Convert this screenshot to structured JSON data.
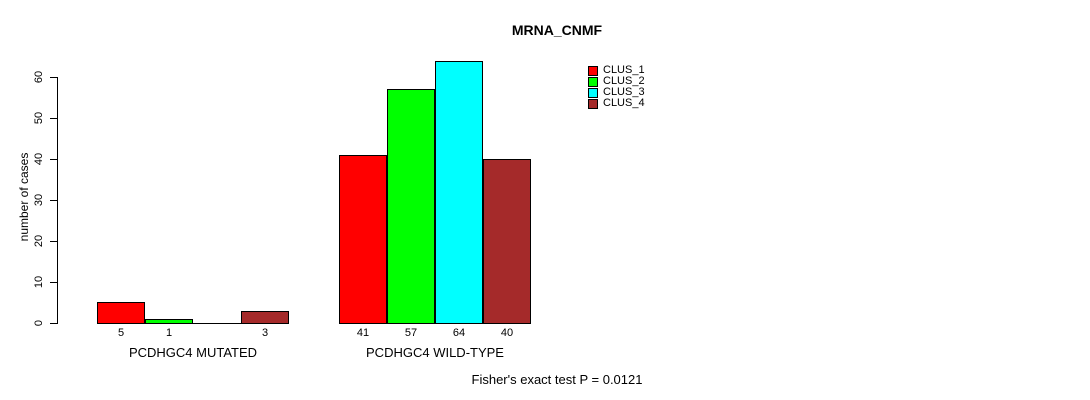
{
  "title": "MRNA_CNMF",
  "ylabel": "number of cases",
  "footer": "Fisher's exact test P = 0.0121",
  "chart_data": {
    "type": "bar",
    "title": "MRNA_CNMF",
    "xlabel": "",
    "ylabel": "number of cases",
    "ylim": [
      0,
      60
    ],
    "yticks": [
      0,
      10,
      20,
      30,
      40,
      50,
      60
    ],
    "grid": false,
    "legend_position": "top-right",
    "categories": [
      "PCDHGC4 MUTATED",
      "PCDHGC4 WILD-TYPE"
    ],
    "series": [
      {
        "name": "CLUS_1",
        "color": "#ff0000",
        "values": [
          5,
          41
        ]
      },
      {
        "name": "CLUS_2",
        "color": "#00ff00",
        "values": [
          1,
          57
        ]
      },
      {
        "name": "CLUS_3",
        "color": "#00ffff",
        "values": [
          0,
          64
        ]
      },
      {
        "name": "CLUS_4",
        "color": "#a52a2a",
        "values": [
          3,
          40
        ]
      }
    ],
    "bar_value_labels": [
      [
        "5",
        "1",
        "",
        "3"
      ],
      [
        "41",
        "57",
        "64",
        "40"
      ]
    ],
    "annotation": "Fisher's exact test P = 0.0121"
  },
  "legend": {
    "entries": [
      {
        "label": "CLUS_1",
        "color": "#ff0000"
      },
      {
        "label": "CLUS_2",
        "color": "#00ff00"
      },
      {
        "label": "CLUS_3",
        "color": "#00ffff"
      },
      {
        "label": "CLUS_4",
        "color": "#a52a2a"
      }
    ]
  },
  "colors": {
    "background": "#ffffff",
    "axis": "#000000",
    "text": "#000000"
  }
}
